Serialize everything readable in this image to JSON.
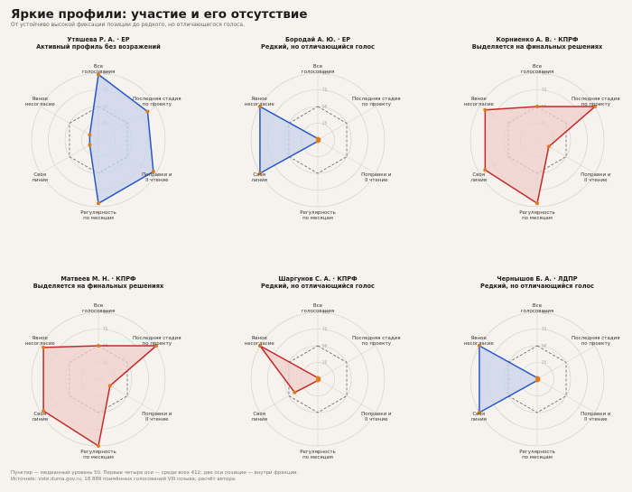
{
  "header": {
    "title": "Яркие профили: участие и его отсутствие",
    "subtitle": "От устойчиво высокой фиксации позиции до редкого, но отличающегося голоса."
  },
  "footer": {
    "note": "Пунктир — медианный уровень 50. Первые четыре оси — среди всех 412; две оси позиции — внутри фракции.",
    "source": "Источник: vote.duma.gov.ru, 18 889 поимённых голосований VIII созыва; расчёт автора."
  },
  "colors": {
    "background": "#f6f3ee",
    "blue": "#2457c5",
    "blue_fill": "#c9d3ea",
    "red": "#c62828",
    "red_fill": "#efcfca",
    "median_line": "#666666",
    "grid": "#cccccc",
    "center_dot": "#e07b1a"
  },
  "chart_data": [
    {
      "type": "radar",
      "title": "Утяшева Р. А.  ·  ЕР",
      "subtitle": "Активный профиль без возражений",
      "color": "blue",
      "axes": [
        "Все\nголосования",
        "Последняя стадия\nпо проекту",
        "Поправки и\nII чтение",
        "Регулярность\nпо месяцам",
        "Своя\nлиния",
        "Явное\nнесогласие"
      ],
      "values": [
        98,
        85,
        95,
        95,
        15,
        15
      ],
      "median": 50,
      "ticks": [
        "25",
        "50",
        "75",
        "100"
      ],
      "rmax": 100
    },
    {
      "type": "radar",
      "title": "Бородай А. Ю.  ·  ЕР",
      "subtitle": "Редкий, но отличающийся голос",
      "color": "blue",
      "axes": [
        "Все\nголосования",
        "Последняя стадия\nпо проекту",
        "Поправки и\nII чтение",
        "Регулярность\nпо месяцам",
        "Своя\nлиния",
        "Явное\nнесогласие"
      ],
      "values": [
        2,
        2,
        2,
        2,
        100,
        100
      ],
      "median": 50,
      "ticks": [
        "25",
        "50",
        "75",
        "100"
      ],
      "rmax": 100
    },
    {
      "type": "radar",
      "title": "Корниенко А. В.  ·  КПРФ",
      "subtitle": "Выделяется на финальных решениях",
      "color": "red",
      "axes": [
        "Все\nголосования",
        "Последняя стадия\nпо проекту",
        "Поправки и\nII чтение",
        "Регулярность\nпо месяцам",
        "Своя\nлиния",
        "Явное\nнесогласие"
      ],
      "values": [
        50,
        100,
        20,
        95,
        90,
        90
      ],
      "median": 50,
      "ticks": [
        "25",
        "50",
        "75",
        "100"
      ],
      "rmax": 100
    },
    {
      "type": "radar",
      "title": "Матвеев М. Н.  ·  КПРФ",
      "subtitle": "Выделяется на финальных решениях",
      "color": "red",
      "axes": [
        "Все\nголосования",
        "Последняя стадия\nпо проекту",
        "Поправки и\nII чтение",
        "Регулярность\nпо месяцам",
        "Своя\nлиния",
        "Явное\nнесогласие"
      ],
      "values": [
        50,
        100,
        20,
        100,
        95,
        95
      ],
      "median": 50,
      "ticks": [
        "25",
        "50",
        "75",
        "100"
      ],
      "rmax": 100
    },
    {
      "type": "radar",
      "title": "Шаргунов С. А.  ·  КПРФ",
      "subtitle": "Редкий, но отличающийся голос",
      "color": "red",
      "axes": [
        "Все\nголосования",
        "Последняя стадия\nпо проекту",
        "Поправки и\nII чтение",
        "Регулярность\nпо месяцам",
        "Своя\nлиния",
        "Явное\nнесогласие"
      ],
      "values": [
        2,
        2,
        2,
        2,
        40,
        100
      ],
      "median": 50,
      "ticks": [
        "25",
        "50",
        "75",
        "100"
      ],
      "rmax": 100
    },
    {
      "type": "radar",
      "title": "Чернышов Б. А.  ·  ЛДПР",
      "subtitle": "Редкий, но отличающийся голос",
      "color": "blue",
      "axes": [
        "Все\nголосования",
        "Последняя стадия\nпо проекту",
        "Поправки и\nII чтение",
        "Регулярность\nпо месяцам",
        "Своя\nлиния",
        "Явное\nнесогласие"
      ],
      "values": [
        2,
        2,
        2,
        2,
        100,
        100
      ],
      "median": 50,
      "ticks": [
        "25",
        "50",
        "75",
        "100"
      ],
      "rmax": 100
    }
  ]
}
